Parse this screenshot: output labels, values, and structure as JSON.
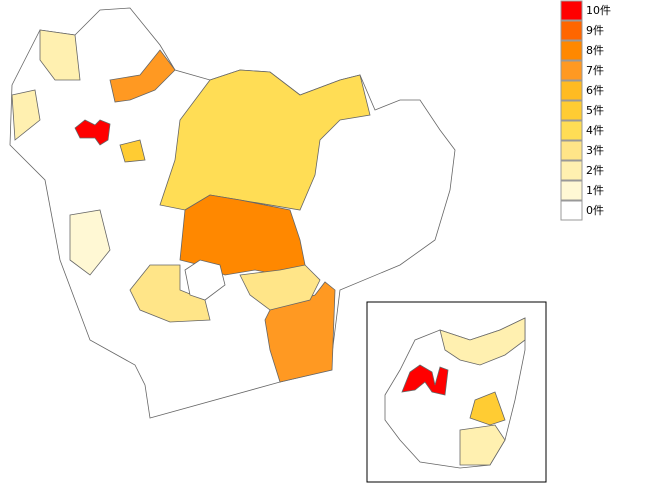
{
  "legend": {
    "items": [
      {
        "label": "10件",
        "color": "#ff0000"
      },
      {
        "label": "9件",
        "color": "#ff6600"
      },
      {
        "label": "8件",
        "color": "#ff8800"
      },
      {
        "label": "7件",
        "color": "#ff9922"
      },
      {
        "label": "6件",
        "color": "#ffbb22"
      },
      {
        "label": "5件",
        "color": "#ffcc33"
      },
      {
        "label": "4件",
        "color": "#ffdd55"
      },
      {
        "label": "3件",
        "color": "#ffe588"
      },
      {
        "label": "2件",
        "color": "#fff0b0"
      },
      {
        "label": "1件",
        "color": "#fff8d4"
      },
      {
        "label": "0件",
        "color": "#ffffff"
      }
    ]
  }
}
